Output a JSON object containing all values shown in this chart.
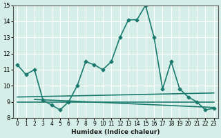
{
  "main_line_x": [
    0,
    1,
    2,
    3,
    4,
    5,
    6,
    7,
    8,
    9,
    10,
    11,
    12,
    13,
    14,
    15,
    16,
    17,
    18,
    19,
    20,
    21,
    22,
    23
  ],
  "main_line_y": [
    11.3,
    10.7,
    11.0,
    9.1,
    8.8,
    8.5,
    9.0,
    10.0,
    11.5,
    11.3,
    11.0,
    11.5,
    13.0,
    14.1,
    14.1,
    15.0,
    13.0,
    9.8,
    11.5,
    9.8,
    9.3,
    9.0,
    8.5,
    8.6
  ],
  "flat_line1_x": [
    0,
    23
  ],
  "flat_line1_y": [
    9.0,
    9.0
  ],
  "flat_line2_x": [
    0,
    23
  ],
  "flat_line2_y": [
    9.3,
    9.55
  ],
  "flat_line3_x": [
    2,
    23
  ],
  "flat_line3_y": [
    9.15,
    8.65
  ],
  "line_color": "#1a7a6e",
  "bg_color": "#d6eee8",
  "grid_color": "#ffffff",
  "xlim": [
    -0.5,
    23.5
  ],
  "ylim": [
    8,
    15
  ],
  "yticks": [
    8,
    9,
    10,
    11,
    12,
    13,
    14,
    15
  ],
  "xtick_labels": [
    "0",
    "1",
    "2",
    "3",
    "4",
    "5",
    "6",
    "7",
    "8",
    "9",
    "10",
    "11",
    "12",
    "13",
    "14",
    "15",
    "16",
    "17",
    "18",
    "19",
    "20",
    "21",
    "22",
    "23"
  ],
  "xlabel": "Humidex (Indice chaleur)",
  "marker": "D",
  "markersize": 2.5,
  "linewidth": 1.2
}
